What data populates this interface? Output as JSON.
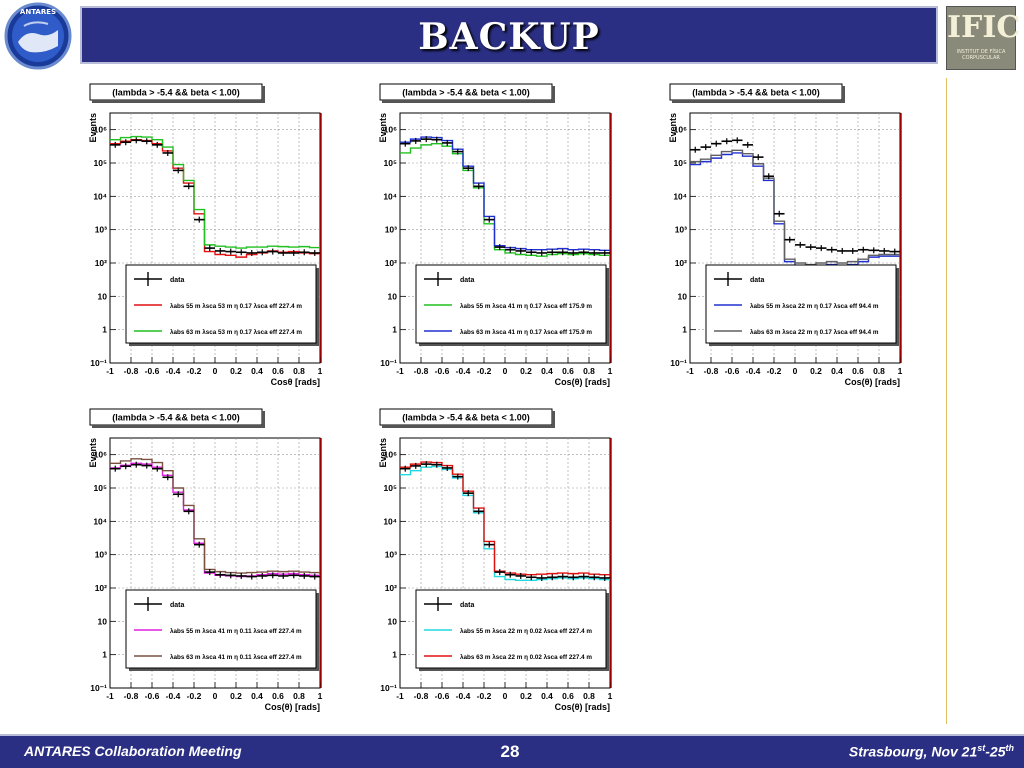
{
  "slide": {
    "title": "BACKUP",
    "right_logo": {
      "main": "IFIC",
      "sub": "INSTITUT DE FÍSICA CORPUSCULAR"
    },
    "footer": {
      "left": "ANTARES Collaboration Meeting",
      "page": "28",
      "right_main": "Strasbourg, Nov 21",
      "right_sup1": "st",
      "right_dash": "-25",
      "right_sup2": "th"
    }
  },
  "colors": {
    "title_bg": "#2b2f83",
    "data": "#000000"
  },
  "chart_data": [
    {
      "type": "line",
      "cut_label": "(lambda > -5.4 && beta < 1.00)",
      "xlabel": "Cosθ [rads]",
      "ylabel": "Events",
      "xlim": [
        -1,
        1
      ],
      "ylim_log10": [
        -1,
        6.5
      ],
      "xticks": [
        "-1",
        "-0.8",
        "-0.6",
        "-0.4",
        "-0.2",
        "0",
        "0.2",
        "0.4",
        "0.6",
        "0.8",
        "1"
      ],
      "yticks": [
        "10⁻¹",
        "1",
        "10",
        "10²",
        "10³",
        "10⁴",
        "10⁵",
        "10⁶"
      ],
      "log_scale_y": true,
      "grid": true,
      "legend": {
        "placement": "bottom-right",
        "entries": [
          {
            "label": "data",
            "color": "#000000",
            "params": ""
          },
          {
            "label": "λabs 55 m λsca 53 m η 0.17 λsca eff 227.4 m",
            "color": "#e01010"
          },
          {
            "label": "λabs 63 m λsca 53 m η 0.17 λsca eff 227.4 m",
            "color": "#20c020"
          }
        ]
      },
      "x": [
        -0.95,
        -0.85,
        -0.75,
        -0.65,
        -0.55,
        -0.45,
        -0.35,
        -0.25,
        -0.15,
        -0.05,
        0.05,
        0.15,
        0.25,
        0.35,
        0.45,
        0.55,
        0.65,
        0.75,
        0.85,
        0.95
      ],
      "series": [
        {
          "name": "data",
          "color": "#000000",
          "values": [
            350000,
            420000,
            480000,
            450000,
            350000,
            200000,
            60000,
            20000,
            2000,
            280,
            230,
            220,
            210,
            200,
            210,
            220,
            200,
            200,
            210,
            200
          ]
        },
        {
          "name": "λabs 55 m λsca 53 m η 0.17 λsca eff 227.4 m",
          "color": "#e01010",
          "values": [
            380000,
            450000,
            500000,
            470000,
            380000,
            230000,
            70000,
            25000,
            3000,
            220,
            180,
            170,
            150,
            180,
            200,
            230,
            210,
            220,
            200,
            190
          ]
        },
        {
          "name": "λabs 63 m λsca 53 m η 0.17 λsca eff 227.4 m",
          "color": "#20c020",
          "values": [
            500000,
            580000,
            620000,
            600000,
            500000,
            300000,
            90000,
            30000,
            4000,
            350,
            320,
            300,
            280,
            300,
            300,
            320,
            310,
            300,
            310,
            290
          ]
        }
      ]
    },
    {
      "type": "line",
      "cut_label": "(lambda > -5.4 && beta < 1.00)",
      "xlabel": "Cos(θ) [rads]",
      "ylabel": "Events",
      "xlim": [
        -1,
        1
      ],
      "ylim_log10": [
        -1,
        6.5
      ],
      "xticks": [
        "-1",
        "-0.8",
        "-0.6",
        "-0.4",
        "-0.2",
        "0",
        "0.2",
        "0.4",
        "0.6",
        "0.8",
        "1"
      ],
      "yticks": [
        "10⁻¹",
        "1",
        "10",
        "10²",
        "10³",
        "10⁴",
        "10⁵",
        "10⁶"
      ],
      "log_scale_y": true,
      "grid": true,
      "legend": {
        "placement": "bottom-right",
        "entries": [
          {
            "label": "data",
            "color": "#000000"
          },
          {
            "label": "λabs 55 m λsca 41 m η 0.17 λsca eff 175.9 m",
            "color": "#20c020"
          },
          {
            "label": "λabs 63 m λsca 41 m η 0.17 λsca eff 175.9 m",
            "color": "#2030d0"
          }
        ]
      },
      "x": [
        -0.95,
        -0.85,
        -0.75,
        -0.65,
        -0.55,
        -0.45,
        -0.35,
        -0.25,
        -0.15,
        -0.05,
        0.05,
        0.15,
        0.25,
        0.35,
        0.45,
        0.55,
        0.65,
        0.75,
        0.85,
        0.95
      ],
      "series": [
        {
          "name": "data",
          "color": "#000000",
          "values": [
            380000,
            460000,
            520000,
            500000,
            400000,
            220000,
            70000,
            20000,
            2000,
            300,
            250,
            230,
            210,
            200,
            210,
            210,
            200,
            210,
            200,
            200
          ]
        },
        {
          "name": "λabs 55 m λsca 41 m η 0.17 λsca eff 175.9 m",
          "color": "#20c020",
          "values": [
            200000,
            280000,
            350000,
            380000,
            320000,
            190000,
            60000,
            18000,
            1500,
            250,
            200,
            180,
            170,
            160,
            180,
            190,
            180,
            190,
            180,
            170
          ]
        },
        {
          "name": "λabs 63 m λsca 41 m η 0.17 λsca eff 175.9 m",
          "color": "#2030d0",
          "values": [
            420000,
            520000,
            600000,
            580000,
            470000,
            260000,
            80000,
            25000,
            2500,
            330,
            290,
            270,
            250,
            250,
            260,
            270,
            250,
            260,
            250,
            240
          ]
        }
      ]
    },
    {
      "type": "line",
      "cut_label": "(lambda > -5.4 && beta < 1.00)",
      "xlabel": "Cos(θ) [rads]",
      "ylabel": "Events",
      "xlim": [
        -1,
        1
      ],
      "ylim_log10": [
        -1,
        6.5
      ],
      "xticks": [
        "-1",
        "-0.8",
        "-0.6",
        "-0.4",
        "-0.2",
        "0",
        "0.2",
        "0.4",
        "0.6",
        "0.8",
        "1"
      ],
      "yticks": [
        "10⁻¹",
        "1",
        "10",
        "10²",
        "10³",
        "10⁴",
        "10⁵",
        "10⁶"
      ],
      "log_scale_y": true,
      "grid": true,
      "legend": {
        "placement": "bottom-right",
        "entries": [
          {
            "label": "data",
            "color": "#000000"
          },
          {
            "label": "λabs 55 m λsca 22 m η 0.17 λsca eff 94.4 m",
            "color": "#2030d0"
          },
          {
            "label": "λabs 63 m λsca 22 m η 0.17 λsca eff 94.4 m",
            "color": "#606060"
          }
        ]
      },
      "x": [
        -0.95,
        -0.85,
        -0.75,
        -0.65,
        -0.55,
        -0.45,
        -0.35,
        -0.25,
        -0.15,
        -0.05,
        0.05,
        0.15,
        0.25,
        0.35,
        0.45,
        0.55,
        0.65,
        0.75,
        0.85,
        0.95
      ],
      "series": [
        {
          "name": "data",
          "color": "#000000",
          "values": [
            250000,
            300000,
            380000,
            450000,
            480000,
            350000,
            150000,
            40000,
            3000,
            500,
            350,
            300,
            280,
            250,
            230,
            230,
            250,
            240,
            230,
            220
          ]
        },
        {
          "name": "λabs 55 m λsca 22 m η 0.17 λsca eff 94.4 m",
          "color": "#2030d0",
          "values": [
            90000,
            110000,
            140000,
            180000,
            200000,
            160000,
            80000,
            30000,
            1500,
            110,
            80,
            70,
            80,
            90,
            80,
            90,
            110,
            150,
            160,
            160
          ]
        },
        {
          "name": "λabs 63 m λsca 22 m η 0.17 λsca eff 94.4 m",
          "color": "#606060",
          "values": [
            110000,
            130000,
            170000,
            220000,
            240000,
            190000,
            95000,
            35000,
            1800,
            130,
            100,
            90,
            100,
            110,
            100,
            110,
            130,
            170,
            180,
            180
          ]
        }
      ]
    },
    {
      "type": "line",
      "cut_label": "(lambda > -5.4 && beta < 1.00)",
      "xlabel": "Cos(θ) [rads]",
      "ylabel": "Events",
      "xlim": [
        -1,
        1
      ],
      "ylim_log10": [
        -1,
        6.5
      ],
      "xticks": [
        "-1",
        "-0.8",
        "-0.6",
        "-0.4",
        "-0.2",
        "0",
        "0.2",
        "0.4",
        "0.6",
        "0.8",
        "1"
      ],
      "yticks": [
        "10⁻¹",
        "1",
        "10",
        "10²",
        "10³",
        "10⁴",
        "10⁵",
        "10⁶"
      ],
      "log_scale_y": true,
      "grid": true,
      "legend": {
        "placement": "bottom-right",
        "entries": [
          {
            "label": "data",
            "color": "#000000"
          },
          {
            "label": "λabs 55 m λsca 41 m η 0.11 λsca eff 227.4 m",
            "color": "#e020e0"
          },
          {
            "label": "λabs 63 m λsca 41 m η 0.11 λsca eff 227.4 m",
            "color": "#7a5040"
          }
        ]
      },
      "x": [
        -0.95,
        -0.85,
        -0.75,
        -0.65,
        -0.55,
        -0.45,
        -0.35,
        -0.25,
        -0.15,
        -0.05,
        0.05,
        0.15,
        0.25,
        0.35,
        0.45,
        0.55,
        0.65,
        0.75,
        0.85,
        0.95
      ],
      "series": [
        {
          "name": "data",
          "color": "#000000",
          "values": [
            380000,
            450000,
            500000,
            470000,
            380000,
            210000,
            65000,
            20000,
            2000,
            300,
            250,
            240,
            230,
            220,
            230,
            240,
            230,
            240,
            230,
            220
          ]
        },
        {
          "name": "λabs 55 m λsca 41 m η 0.11 λsca eff 227.4 m",
          "color": "#e020e0",
          "values": [
            400000,
            480000,
            550000,
            520000,
            420000,
            240000,
            75000,
            22000,
            2200,
            280,
            240,
            230,
            220,
            230,
            250,
            270,
            260,
            270,
            250,
            240
          ]
        },
        {
          "name": "λabs 63 m λsca 41 m η 0.11 λsca eff 227.4 m",
          "color": "#7a5040",
          "values": [
            550000,
            650000,
            750000,
            720000,
            580000,
            330000,
            100000,
            30000,
            3000,
            360,
            310,
            290,
            280,
            290,
            300,
            320,
            310,
            320,
            300,
            290
          ]
        }
      ]
    },
    {
      "type": "line",
      "cut_label": "(lambda > -5.4 && beta < 1.00)",
      "xlabel": "Cos(θ) [rads]",
      "ylabel": "Events",
      "xlim": [
        -1,
        1
      ],
      "ylim_log10": [
        -1,
        6.5
      ],
      "xticks": [
        "-1",
        "-0.8",
        "-0.6",
        "-0.4",
        "-0.2",
        "0",
        "0.2",
        "0.4",
        "0.6",
        "0.8",
        "1"
      ],
      "yticks": [
        "10⁻¹",
        "1",
        "10",
        "10²",
        "10³",
        "10⁴",
        "10⁵",
        "10⁶"
      ],
      "log_scale_y": true,
      "grid": true,
      "legend": {
        "placement": "bottom-right",
        "entries": [
          {
            "label": "data",
            "color": "#000000"
          },
          {
            "label": "λabs 55 m λsca 22 m η 0.02 λsca eff 227.4 m",
            "color": "#20d8e0"
          },
          {
            "label": "λabs 63 m λsca 22 m η 0.02 λsca eff 227.4 m",
            "color": "#e01010"
          }
        ]
      },
      "x": [
        -0.95,
        -0.85,
        -0.75,
        -0.65,
        -0.55,
        -0.45,
        -0.35,
        -0.25,
        -0.15,
        -0.05,
        0.05,
        0.15,
        0.25,
        0.35,
        0.45,
        0.55,
        0.65,
        0.75,
        0.85,
        0.95
      ],
      "series": [
        {
          "name": "data",
          "color": "#000000",
          "values": [
            380000,
            460000,
            520000,
            500000,
            400000,
            220000,
            70000,
            20000,
            2000,
            300,
            250,
            230,
            210,
            200,
            210,
            220,
            210,
            220,
            210,
            200
          ]
        },
        {
          "name": "λabs 55 m λsca 22 m η 0.02 λsca eff 227.4 m",
          "color": "#20d8e0",
          "values": [
            250000,
            330000,
            420000,
            440000,
            360000,
            200000,
            60000,
            18000,
            1500,
            220,
            180,
            170,
            170,
            180,
            190,
            200,
            190,
            200,
            190,
            180
          ]
        },
        {
          "name": "λabs 63 m λsca 22 m η 0.02 λsca eff 227.4 m",
          "color": "#e01010",
          "values": [
            420000,
            520000,
            600000,
            580000,
            470000,
            260000,
            80000,
            25000,
            2500,
            320,
            280,
            260,
            250,
            260,
            270,
            280,
            270,
            280,
            260,
            250
          ]
        }
      ]
    }
  ]
}
